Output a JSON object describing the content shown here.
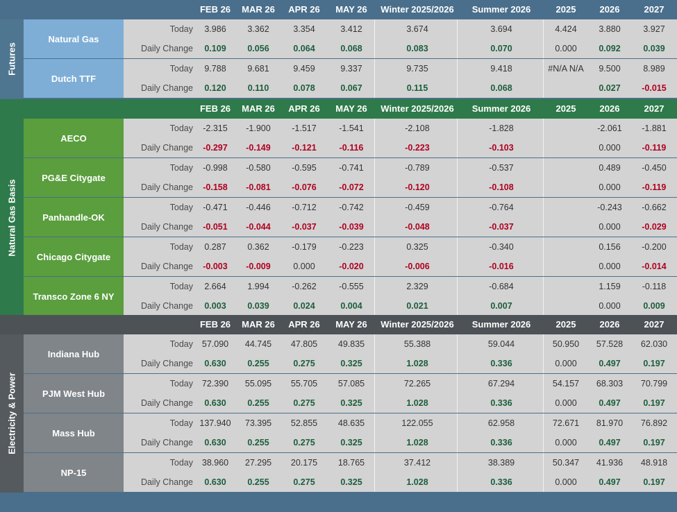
{
  "headers": [
    "FEB 26",
    "MAR 26",
    "APR 26",
    "MAY 26",
    "Winter 2025/2026",
    "Summer 2026",
    "2025",
    "2026",
    "2027"
  ],
  "today_label": "Today",
  "change_label": "Daily Change",
  "colors": {
    "futures_side": "#4f7690",
    "futures_name": "#7eaed6",
    "basis_side": "#2e7a4a",
    "basis_name": "#5a9e3e",
    "power_side": "#555a5e",
    "power_name": "#808589",
    "positive": "#1b5e3b",
    "negative": "#b00020"
  },
  "sections": [
    {
      "id": "futures",
      "label": "Futures",
      "rows": [
        {
          "name": "Natural Gas",
          "today": [
            "3.986",
            "3.362",
            "3.354",
            "3.412",
            "3.674",
            "3.694",
            "4.424",
            "3.880",
            "3.927"
          ],
          "change": [
            "0.109",
            "0.056",
            "0.064",
            "0.068",
            "0.083",
            "0.070",
            "0.000",
            "0.092",
            "0.039"
          ]
        },
        {
          "name": "Dutch TTF",
          "today": [
            "9.788",
            "9.681",
            "9.459",
            "9.337",
            "9.735",
            "9.418",
            "#N/A N/A",
            "9.500",
            "8.989"
          ],
          "change": [
            "0.120",
            "0.110",
            "0.078",
            "0.067",
            "0.115",
            "0.068",
            "",
            "0.027",
            "-0.015"
          ]
        }
      ]
    },
    {
      "id": "basis",
      "label": "Natural Gas Basis",
      "rows": [
        {
          "name": "AECO",
          "today": [
            "-2.315",
            "-1.900",
            "-1.517",
            "-1.541",
            "-2.108",
            "-1.828",
            "",
            "-2.061",
            "-1.881"
          ],
          "change": [
            "-0.297",
            "-0.149",
            "-0.121",
            "-0.116",
            "-0.223",
            "-0.103",
            "",
            "0.000",
            "-0.119"
          ]
        },
        {
          "name": "PG&E Citygate",
          "today": [
            "-0.998",
            "-0.580",
            "-0.595",
            "-0.741",
            "-0.789",
            "-0.537",
            "",
            "0.489",
            "-0.450"
          ],
          "change": [
            "-0.158",
            "-0.081",
            "-0.076",
            "-0.072",
            "-0.120",
            "-0.108",
            "",
            "0.000",
            "-0.119"
          ]
        },
        {
          "name": "Panhandle-OK",
          "today": [
            "-0.471",
            "-0.446",
            "-0.712",
            "-0.742",
            "-0.459",
            "-0.764",
            "",
            "-0.243",
            "-0.662"
          ],
          "change": [
            "-0.051",
            "-0.044",
            "-0.037",
            "-0.039",
            "-0.048",
            "-0.037",
            "",
            "0.000",
            "-0.029"
          ]
        },
        {
          "name": "Chicago Citygate",
          "today": [
            "0.287",
            "0.362",
            "-0.179",
            "-0.223",
            "0.325",
            "-0.340",
            "",
            "0.156",
            "-0.200"
          ],
          "change": [
            "-0.003",
            "-0.009",
            "0.000",
            "-0.020",
            "-0.006",
            "-0.016",
            "",
            "0.000",
            "-0.014"
          ]
        },
        {
          "name": "Transco Zone 6 NY",
          "today": [
            "2.664",
            "1.994",
            "-0.262",
            "-0.555",
            "2.329",
            "-0.684",
            "",
            "1.159",
            "-0.118"
          ],
          "change": [
            "0.003",
            "0.039",
            "0.024",
            "0.004",
            "0.021",
            "0.007",
            "",
            "0.000",
            "0.009"
          ]
        }
      ]
    },
    {
      "id": "power",
      "label": "Electricity & Power",
      "rows": [
        {
          "name": "Indiana Hub",
          "today": [
            "57.090",
            "44.745",
            "47.805",
            "49.835",
            "55.388",
            "59.044",
            "50.950",
            "57.528",
            "62.030"
          ],
          "change": [
            "0.630",
            "0.255",
            "0.275",
            "0.325",
            "1.028",
            "0.336",
            "0.000",
            "0.497",
            "0.197"
          ]
        },
        {
          "name": "PJM West Hub",
          "today": [
            "72.390",
            "55.095",
            "55.705",
            "57.085",
            "72.265",
            "67.294",
            "54.157",
            "68.303",
            "70.799"
          ],
          "change": [
            "0.630",
            "0.255",
            "0.275",
            "0.325",
            "1.028",
            "0.336",
            "0.000",
            "0.497",
            "0.197"
          ]
        },
        {
          "name": "Mass Hub",
          "today": [
            "137.940",
            "73.395",
            "52.855",
            "48.635",
            "122.055",
            "62.958",
            "72.671",
            "81.970",
            "76.892"
          ],
          "change": [
            "0.630",
            "0.255",
            "0.275",
            "0.325",
            "1.028",
            "0.336",
            "0.000",
            "0.497",
            "0.197"
          ]
        },
        {
          "name": "NP-15",
          "today": [
            "38.960",
            "27.295",
            "20.175",
            "18.765",
            "37.412",
            "38.389",
            "50.347",
            "41.936",
            "48.918"
          ],
          "change": [
            "0.630",
            "0.255",
            "0.275",
            "0.325",
            "1.028",
            "0.336",
            "0.000",
            "0.497",
            "0.197"
          ]
        }
      ]
    }
  ]
}
